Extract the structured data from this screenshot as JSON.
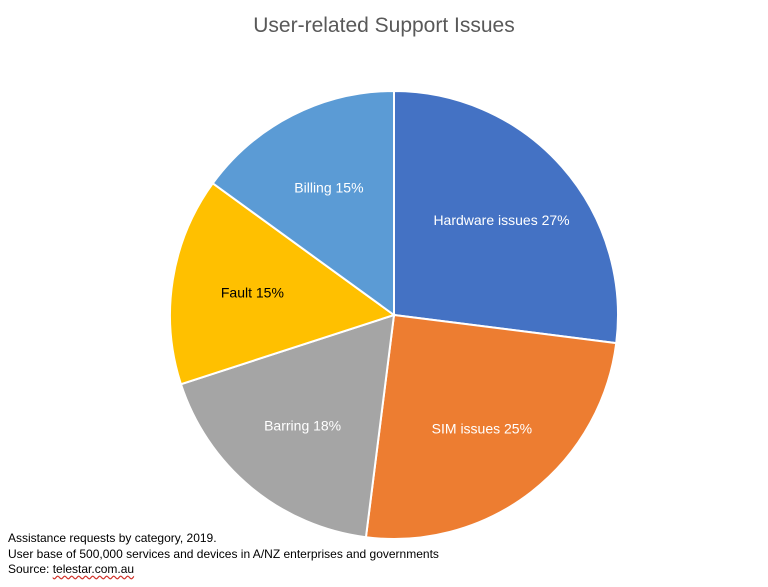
{
  "chart_data": {
    "type": "pie",
    "title": "User-related Support Issues",
    "slices": [
      {
        "label": "Hardware issues 27%",
        "category": "Hardware issues",
        "value": 27,
        "color": "#4472C4"
      },
      {
        "label": "SIM issues 25%",
        "category": "SIM issues",
        "value": 25,
        "color": "#ED7D31"
      },
      {
        "label": "Barring 18%",
        "category": "Barring",
        "value": 18,
        "color": "#A5A5A5"
      },
      {
        "label": "Fault 15%",
        "category": "Fault",
        "value": 15,
        "color": "#FFC000"
      },
      {
        "label": "Billing 15%",
        "category": "Billing",
        "value": 15,
        "color": "#5B9BD5"
      }
    ],
    "start": "12 o'clock, clockwise"
  },
  "notes": {
    "line1": "Assistance requests by category, 2019.",
    "line2": "User base of 500,000 services and devices in A/NZ enterprises and governments",
    "source_prefix": "Source: ",
    "source_link": "telestar.com.au"
  }
}
